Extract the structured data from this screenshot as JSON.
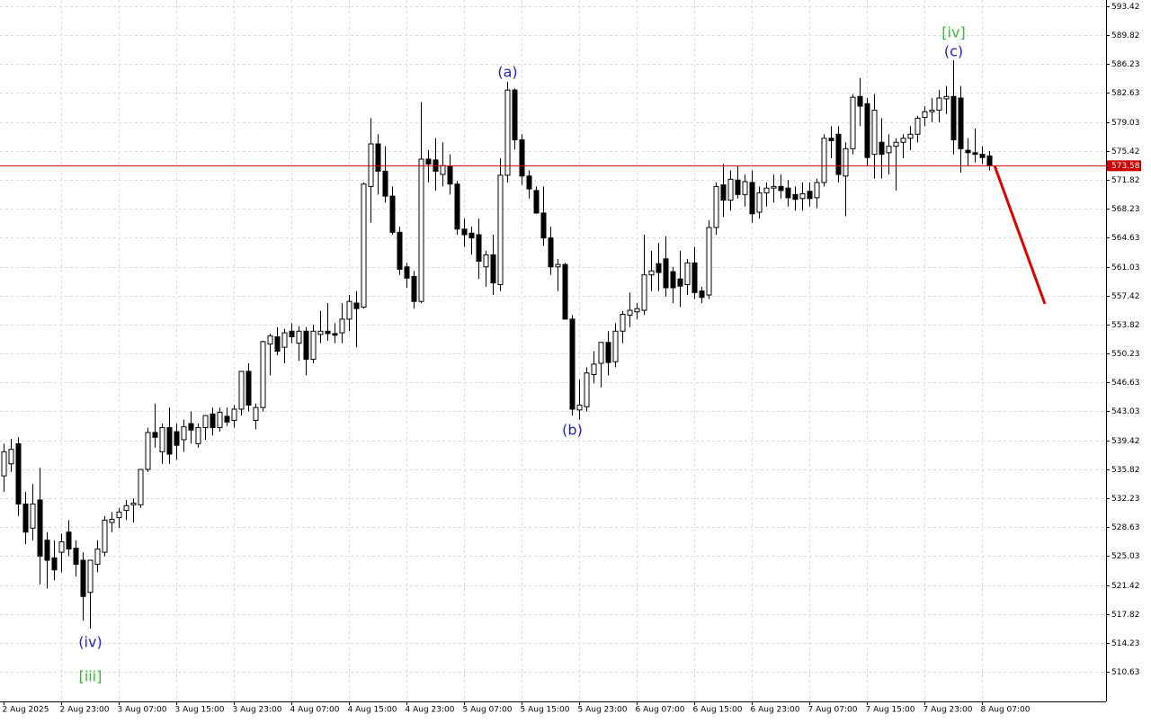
{
  "chart_data": {
    "type": "candlestick",
    "up_color": "#ffffff",
    "down_color": "#000000",
    "grid": true,
    "ylim": [
      506.94,
      594.2
    ],
    "yticks": [
      593.42,
      589.82,
      586.23,
      582.63,
      579.03,
      575.42,
      571.82,
      568.23,
      564.63,
      561.03,
      557.42,
      553.82,
      550.23,
      546.63,
      543.03,
      539.42,
      535.82,
      532.23,
      528.63,
      525.03,
      521.42,
      517.82,
      514.23,
      510.63
    ],
    "x": [
      "2 Aug 2025",
      null,
      null,
      null,
      null,
      null,
      null,
      null,
      "2 Aug 23:00",
      null,
      null,
      null,
      null,
      null,
      null,
      null,
      "3 Aug 07:00",
      null,
      null,
      null,
      null,
      null,
      null,
      null,
      "3 Aug 15:00",
      null,
      null,
      null,
      null,
      null,
      null,
      null,
      "3 Aug 23:00",
      null,
      null,
      null,
      null,
      null,
      null,
      null,
      "4 Aug 07:00",
      null,
      null,
      null,
      null,
      null,
      null,
      null,
      "4 Aug 15:00",
      null,
      null,
      null,
      null,
      null,
      null,
      null,
      "4 Aug 23:00",
      null,
      null,
      null,
      null,
      null,
      null,
      null,
      "5 Aug 07:00",
      null,
      null,
      null,
      null,
      null,
      null,
      null,
      "5 Aug 15:00",
      null,
      null,
      null,
      null,
      null,
      null,
      null,
      "5 Aug 23:00",
      null,
      null,
      null,
      null,
      null,
      null,
      null,
      "6 Aug 07:00",
      null,
      null,
      null,
      null,
      null,
      null,
      null,
      "6 Aug 15:00",
      null,
      null,
      null,
      null,
      null,
      null,
      null,
      "6 Aug 23:00",
      null,
      null,
      null,
      null,
      null,
      null,
      null,
      "7 Aug 07:00",
      null,
      null,
      null,
      null,
      null,
      null,
      null,
      "7 Aug 15:00",
      null,
      null,
      null,
      null,
      null,
      null,
      null,
      "7 Aug 23:00",
      null,
      null,
      null,
      null,
      null,
      null,
      null,
      "8 Aug 07:00",
      null
    ],
    "candles": [
      [
        535,
        539,
        533,
        538
      ],
      [
        536.5,
        539.6,
        535.5,
        538.3
      ],
      [
        539,
        539.8,
        530,
        531.5
      ],
      [
        531.5,
        533,
        526.5,
        528
      ],
      [
        528.5,
        534,
        527,
        531.5
      ],
      [
        532,
        536,
        521.5,
        525
      ],
      [
        527,
        528,
        521,
        524.5
      ],
      [
        524.8,
        527,
        522,
        523.3
      ],
      [
        525.5,
        527.8,
        523,
        526.8
      ],
      [
        528,
        529.5,
        525,
        525.9
      ],
      [
        526,
        527,
        522.5,
        524
      ],
      [
        524.5,
        525.5,
        517,
        520
      ],
      [
        520.5,
        524,
        516,
        524.5
      ],
      [
        524,
        527,
        523,
        525.9
      ],
      [
        525.5,
        530,
        525,
        529.5
      ],
      [
        529.2,
        530.5,
        528,
        529.6
      ],
      [
        529.8,
        531,
        528.5,
        530.5
      ],
      [
        530.7,
        532,
        529.5,
        531.3
      ],
      [
        531.4,
        532.2,
        529.2,
        531.6
      ],
      [
        531.4,
        535.8,
        531,
        535.8
      ],
      [
        535.8,
        541,
        535.5,
        540.4
      ],
      [
        540.4,
        544,
        538.5,
        539.8
      ],
      [
        538,
        541.5,
        536.5,
        541
      ],
      [
        541,
        543.5,
        536.5,
        537.7
      ],
      [
        540.5,
        541.5,
        537,
        538.8
      ],
      [
        539.5,
        542,
        538,
        541.1
      ],
      [
        541.5,
        543,
        539,
        540.7
      ],
      [
        539,
        541.5,
        538.5,
        541
      ],
      [
        541,
        542.5,
        539.5,
        542.5
      ],
      [
        542.7,
        543.5,
        540,
        541
      ],
      [
        541,
        543.5,
        540.5,
        542.9
      ],
      [
        542.4,
        543.5,
        541.2,
        541.7
      ],
      [
        541.9,
        543.8,
        541,
        543.3
      ],
      [
        543.3,
        547.8,
        542.5,
        548
      ],
      [
        548,
        549,
        543,
        543.8
      ],
      [
        541.9,
        544,
        540.8,
        543.5
      ],
      [
        543.5,
        551.8,
        543,
        551.7
      ],
      [
        551.4,
        552.7,
        547.5,
        552.4
      ],
      [
        552.3,
        553.5,
        550,
        550.5
      ],
      [
        551,
        553.3,
        549,
        552.8
      ],
      [
        553,
        554,
        551.5,
        552.3
      ],
      [
        551.5,
        553.6,
        549.3,
        553
      ],
      [
        553,
        553.5,
        547.5,
        549.5
      ],
      [
        549.5,
        553.8,
        549,
        553
      ],
      [
        552.6,
        555.5,
        551.5,
        553
      ],
      [
        553,
        556.5,
        551.8,
        552.7
      ],
      [
        552.7,
        554,
        551.5,
        552.5
      ],
      [
        552.8,
        556.5,
        551.5,
        554.5
      ],
      [
        554.5,
        557.5,
        553,
        556.7
      ],
      [
        556.5,
        558,
        551,
        555.8
      ],
      [
        556,
        571.5,
        555.8,
        571.3
      ],
      [
        571,
        579.5,
        566.5,
        576.3
      ],
      [
        576.3,
        577.5,
        570,
        572.9
      ],
      [
        572.9,
        576,
        569,
        569.8
      ],
      [
        569.8,
        571,
        565,
        565.3
      ],
      [
        565.3,
        566,
        560,
        560.7
      ],
      [
        561,
        561.5,
        558.4,
        559.6
      ],
      [
        559.8,
        560.5,
        555.8,
        556.7
      ],
      [
        556.7,
        581.5,
        556.5,
        574.4
      ],
      [
        574.4,
        575.5,
        571.5,
        573.8
      ],
      [
        574.3,
        577,
        570.5,
        572.9
      ],
      [
        572.5,
        576.5,
        571,
        573.6
      ],
      [
        573.5,
        575,
        570,
        571.3
      ],
      [
        571.3,
        571.7,
        565,
        565.7
      ],
      [
        565.7,
        567,
        563.5,
        565
      ],
      [
        565.2,
        566,
        562.5,
        564.6
      ],
      [
        565,
        567,
        559.5,
        561.7
      ],
      [
        561,
        563,
        558.5,
        562.5
      ],
      [
        562.5,
        565,
        557.5,
        559
      ],
      [
        558.8,
        574.5,
        558,
        572.4
      ],
      [
        572.4,
        584,
        571.5,
        583
      ],
      [
        583,
        583.2,
        575.6,
        576.8
      ],
      [
        576.8,
        577.5,
        571.2,
        572.3
      ],
      [
        572.3,
        573,
        569.5,
        570.7
      ],
      [
        570.5,
        571,
        567.6,
        567.7
      ],
      [
        567.7,
        571,
        563.6,
        564.6
      ],
      [
        564.6,
        566,
        560,
        561
      ],
      [
        561,
        562,
        558,
        561.3
      ],
      [
        561.3,
        561.5,
        554.5,
        554.5
      ],
      [
        554.5,
        555,
        542.5,
        543.3
      ],
      [
        543.2,
        547,
        542,
        543.8
      ],
      [
        543.6,
        548.5,
        543,
        547.8
      ],
      [
        547.6,
        550.5,
        546.5,
        548.9
      ],
      [
        549,
        551.5,
        546,
        551.6
      ],
      [
        551.6,
        553,
        547.5,
        549.1
      ],
      [
        549.2,
        554,
        548.5,
        553
      ],
      [
        553,
        555.5,
        551.5,
        555.1
      ],
      [
        555,
        557.8,
        553.5,
        555.6
      ],
      [
        555.4,
        556.5,
        554.5,
        555.8
      ],
      [
        555.6,
        565,
        555,
        560
      ],
      [
        560,
        563,
        558,
        560.5
      ],
      [
        561.4,
        564,
        558,
        560.3
      ],
      [
        562,
        564.8,
        557.3,
        558.4
      ],
      [
        560.4,
        561,
        556.5,
        558.4
      ],
      [
        559.5,
        563,
        556,
        558.6
      ],
      [
        558.8,
        562,
        557.5,
        561.5
      ],
      [
        561.5,
        563.5,
        557,
        557.8
      ],
      [
        558,
        558.5,
        556.5,
        557.2
      ],
      [
        557.5,
        566.8,
        557,
        565.9
      ],
      [
        565.9,
        571.5,
        565,
        571
      ],
      [
        571.2,
        573.8,
        567.2,
        569.3
      ],
      [
        569.3,
        573,
        568,
        571.9
      ],
      [
        571.8,
        573.5,
        569.5,
        570
      ],
      [
        570,
        572.5,
        568.5,
        571.6
      ],
      [
        571.5,
        573,
        566.5,
        567.6
      ],
      [
        567.8,
        571,
        567,
        570.2
      ],
      [
        570.2,
        571.5,
        568.5,
        570.8
      ],
      [
        570.8,
        572.5,
        569,
        571
      ],
      [
        571,
        572.5,
        569.5,
        570.5
      ],
      [
        570.8,
        571.8,
        568.5,
        569.6
      ],
      [
        570,
        571,
        568,
        569.4
      ],
      [
        569.5,
        571.5,
        568,
        570.1
      ],
      [
        570.4,
        571.5,
        568.5,
        569.5
      ],
      [
        569.6,
        572,
        568.3,
        571.5
      ],
      [
        571.5,
        577.5,
        571,
        577
      ],
      [
        577,
        578.5,
        574.5,
        576.7
      ],
      [
        577.5,
        578.5,
        571.5,
        572.5
      ],
      [
        572.3,
        576.5,
        567.3,
        575.7
      ],
      [
        575.7,
        582.5,
        575,
        582.1
      ],
      [
        582.2,
        584.5,
        578.5,
        581
      ],
      [
        581.3,
        582,
        573.5,
        574.6
      ],
      [
        575,
        582.5,
        572,
        580.5
      ],
      [
        576.5,
        579.5,
        572,
        575
      ],
      [
        575.2,
        577.5,
        572.5,
        576
      ],
      [
        576,
        577,
        570.5,
        576.5
      ],
      [
        576.5,
        577.5,
        574.5,
        577
      ],
      [
        577,
        578.5,
        575.5,
        577.5
      ],
      [
        577.5,
        579.8,
        576.5,
        579.5
      ],
      [
        579.6,
        581,
        578.5,
        580.3
      ],
      [
        580.3,
        582,
        579,
        580.5
      ],
      [
        580.5,
        583,
        579,
        582
      ],
      [
        581.9,
        583.5,
        580,
        582.2
      ],
      [
        582.2,
        586.7,
        575,
        576.8
      ],
      [
        582,
        583.5,
        572.7,
        575.7
      ],
      [
        575.5,
        577,
        573.5,
        575.2
      ],
      [
        575.2,
        578.2,
        574,
        575
      ],
      [
        575,
        576,
        573.8,
        574.6
      ],
      [
        574.8,
        575.4,
        573,
        573.58
      ]
    ],
    "last_price": 573.58,
    "last_price_color": "#cc0000",
    "forecast": {
      "values": [
        573.6,
        556.4
      ],
      "color": "#dd0000"
    },
    "annotations": [
      {
        "text": "(iv)",
        "color": "#2222cc"
      },
      {
        "text": "[iii]",
        "color": "#33bb33"
      },
      {
        "text": "(a)",
        "color": "#2222cc"
      },
      {
        "text": "(b)",
        "color": "#2222cc"
      },
      {
        "text": "(c)",
        "color": "#2222cc"
      },
      {
        "text": "[iv]",
        "color": "#33bb33"
      }
    ]
  }
}
